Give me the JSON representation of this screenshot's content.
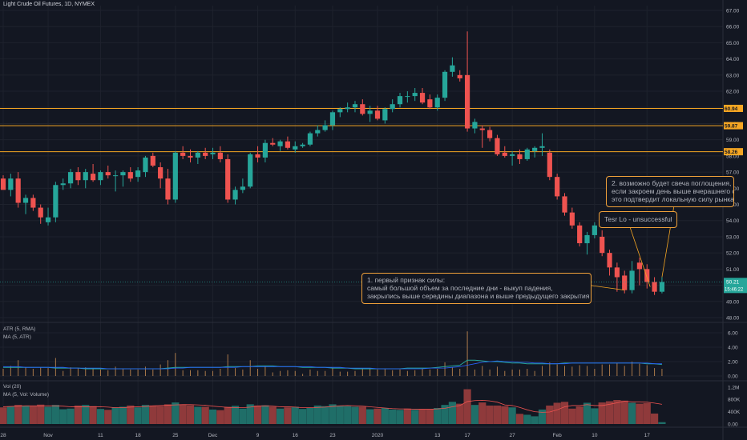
{
  "header": {
    "title": "Light Crude Oil Futures, 1D, NYMEX"
  },
  "theme": {
    "bg": "#131722",
    "grid": "#1e222d",
    "up": "#26a69a",
    "down": "#ef5350",
    "level": "#f5a623"
  },
  "chart_data": [
    {
      "type": "candlestick",
      "title": "Light Crude Oil Futures, 1D, NYMEX",
      "ylim": [
        48.0,
        67.0
      ],
      "y_ticks": [
        "67.00",
        "66.00",
        "65.00",
        "64.00",
        "63.00",
        "62.00",
        "61.00",
        "60.00",
        "59.00",
        "58.00",
        "57.00",
        "56.00",
        "55.00",
        "54.00",
        "53.00",
        "52.00",
        "51.00",
        "50.00",
        "49.00",
        "48.00"
      ],
      "x_ticks": [
        "28",
        "Nov",
        "11",
        "18",
        "25",
        "Dec",
        "9",
        "16",
        "23",
        "2020",
        "13",
        "17",
        "27",
        "Feb",
        "10",
        "17"
      ],
      "price_labels": {
        "last": "50.21",
        "countdown": "15:46:22"
      },
      "levels": [
        {
          "value": 60.94,
          "label": "60.94"
        },
        {
          "value": 59.87,
          "label": "59.87"
        },
        {
          "value": 58.26,
          "label": "58.26"
        }
      ],
      "candles": [
        {
          "o": 56.6,
          "h": 56.8,
          "l": 56.0,
          "c": 55.9
        },
        {
          "o": 55.9,
          "h": 56.9,
          "l": 55.5,
          "c": 56.6
        },
        {
          "o": 56.6,
          "h": 57.0,
          "l": 54.8,
          "c": 55.1
        },
        {
          "o": 55.1,
          "h": 55.6,
          "l": 54.4,
          "c": 55.4
        },
        {
          "o": 55.4,
          "h": 55.6,
          "l": 54.6,
          "c": 54.8
        },
        {
          "o": 54.8,
          "h": 55.0,
          "l": 53.8,
          "c": 54.2
        },
        {
          "o": 53.9,
          "h": 54.8,
          "l": 53.7,
          "c": 54.2
        },
        {
          "o": 54.2,
          "h": 56.4,
          "l": 53.9,
          "c": 56.2
        },
        {
          "o": 56.2,
          "h": 56.6,
          "l": 55.9,
          "c": 56.3
        },
        {
          "o": 56.3,
          "h": 57.2,
          "l": 56.0,
          "c": 57.0
        },
        {
          "o": 57.0,
          "h": 57.3,
          "l": 56.2,
          "c": 56.5
        },
        {
          "o": 56.5,
          "h": 57.2,
          "l": 56.0,
          "c": 57.0
        },
        {
          "o": 56.9,
          "h": 57.5,
          "l": 56.4,
          "c": 56.5
        },
        {
          "o": 56.5,
          "h": 57.1,
          "l": 56.2,
          "c": 57.0
        },
        {
          "o": 57.0,
          "h": 57.4,
          "l": 56.6,
          "c": 56.8
        },
        {
          "o": 56.8,
          "h": 57.1,
          "l": 55.8,
          "c": 56.8
        },
        {
          "o": 56.8,
          "h": 57.1,
          "l": 56.1,
          "c": 57.0
        },
        {
          "o": 57.0,
          "h": 57.3,
          "l": 56.4,
          "c": 56.6
        },
        {
          "o": 56.7,
          "h": 57.3,
          "l": 56.4,
          "c": 57.1
        },
        {
          "o": 57.0,
          "h": 58.0,
          "l": 56.7,
          "c": 57.9
        },
        {
          "o": 58.0,
          "h": 58.2,
          "l": 57.3,
          "c": 57.4
        },
        {
          "o": 57.3,
          "h": 57.6,
          "l": 56.0,
          "c": 56.6
        },
        {
          "o": 56.6,
          "h": 57.2,
          "l": 55.0,
          "c": 55.3
        },
        {
          "o": 55.3,
          "h": 58.3,
          "l": 55.1,
          "c": 58.2
        },
        {
          "o": 58.2,
          "h": 58.6,
          "l": 57.8,
          "c": 58.0
        },
        {
          "o": 58.0,
          "h": 58.4,
          "l": 57.6,
          "c": 57.9
        },
        {
          "o": 57.9,
          "h": 58.3,
          "l": 57.5,
          "c": 58.2
        },
        {
          "o": 58.2,
          "h": 58.5,
          "l": 57.8,
          "c": 58.0
        },
        {
          "o": 58.1,
          "h": 58.5,
          "l": 57.8,
          "c": 58.2
        },
        {
          "o": 58.2,
          "h": 58.6,
          "l": 57.6,
          "c": 57.8
        },
        {
          "o": 57.8,
          "h": 58.1,
          "l": 55.1,
          "c": 55.3
        },
        {
          "o": 55.3,
          "h": 56.1,
          "l": 55.0,
          "c": 55.9
        },
        {
          "o": 55.9,
          "h": 56.6,
          "l": 55.7,
          "c": 56.1
        },
        {
          "o": 56.1,
          "h": 58.2,
          "l": 56.0,
          "c": 58.1
        },
        {
          "o": 58.1,
          "h": 58.6,
          "l": 57.6,
          "c": 57.9
        },
        {
          "o": 57.9,
          "h": 59.0,
          "l": 57.6,
          "c": 58.8
        },
        {
          "o": 58.8,
          "h": 59.1,
          "l": 58.6,
          "c": 58.7
        },
        {
          "o": 58.6,
          "h": 59.0,
          "l": 58.3,
          "c": 58.9
        },
        {
          "o": 58.9,
          "h": 59.2,
          "l": 58.4,
          "c": 58.5
        },
        {
          "o": 58.4,
          "h": 58.9,
          "l": 58.2,
          "c": 58.6
        },
        {
          "o": 58.6,
          "h": 58.8,
          "l": 58.5,
          "c": 58.7
        },
        {
          "o": 58.7,
          "h": 59.5,
          "l": 58.6,
          "c": 59.4
        },
        {
          "o": 59.4,
          "h": 59.9,
          "l": 59.2,
          "c": 59.6
        },
        {
          "o": 59.6,
          "h": 60.2,
          "l": 59.5,
          "c": 59.9
        },
        {
          "o": 59.9,
          "h": 60.8,
          "l": 59.6,
          "c": 60.7
        },
        {
          "o": 60.7,
          "h": 61.0,
          "l": 60.4,
          "c": 60.9
        },
        {
          "o": 60.9,
          "h": 61.3,
          "l": 60.7,
          "c": 61.0
        },
        {
          "o": 61.0,
          "h": 61.4,
          "l": 60.7,
          "c": 61.2
        },
        {
          "o": 61.2,
          "h": 61.5,
          "l": 60.5,
          "c": 60.6
        },
        {
          "o": 60.6,
          "h": 61.1,
          "l": 60.1,
          "c": 60.8
        },
        {
          "o": 60.8,
          "h": 61.1,
          "l": 60.2,
          "c": 60.3
        },
        {
          "o": 60.2,
          "h": 61.0,
          "l": 60.0,
          "c": 60.9
        },
        {
          "o": 60.9,
          "h": 61.5,
          "l": 60.7,
          "c": 61.2
        },
        {
          "o": 61.2,
          "h": 61.9,
          "l": 61.0,
          "c": 61.7
        },
        {
          "o": 61.7,
          "h": 62.0,
          "l": 61.3,
          "c": 61.7
        },
        {
          "o": 61.7,
          "h": 62.2,
          "l": 61.4,
          "c": 61.9
        },
        {
          "o": 61.9,
          "h": 62.2,
          "l": 61.2,
          "c": 61.3
        },
        {
          "o": 61.5,
          "h": 61.8,
          "l": 60.9,
          "c": 61.0
        },
        {
          "o": 61.0,
          "h": 61.8,
          "l": 60.8,
          "c": 61.6
        },
        {
          "o": 61.6,
          "h": 63.3,
          "l": 61.4,
          "c": 63.2
        },
        {
          "o": 63.2,
          "h": 64.1,
          "l": 62.9,
          "c": 63.6
        },
        {
          "o": 63.0,
          "h": 63.3,
          "l": 62.6,
          "c": 62.8
        },
        {
          "o": 63.0,
          "h": 65.7,
          "l": 59.5,
          "c": 59.7
        },
        {
          "o": 59.7,
          "h": 60.3,
          "l": 59.4,
          "c": 60.1
        },
        {
          "o": 59.7,
          "h": 59.9,
          "l": 58.5,
          "c": 59.6
        },
        {
          "o": 59.6,
          "h": 59.8,
          "l": 58.9,
          "c": 59.1
        },
        {
          "o": 59.1,
          "h": 59.3,
          "l": 58.0,
          "c": 58.1
        },
        {
          "o": 58.2,
          "h": 58.6,
          "l": 57.9,
          "c": 58.0
        },
        {
          "o": 58.0,
          "h": 58.3,
          "l": 57.4,
          "c": 58.1
        },
        {
          "o": 58.1,
          "h": 58.4,
          "l": 57.5,
          "c": 57.8
        },
        {
          "o": 57.8,
          "h": 58.5,
          "l": 57.7,
          "c": 58.4
        },
        {
          "o": 58.3,
          "h": 58.6,
          "l": 57.9,
          "c": 58.5
        },
        {
          "o": 58.5,
          "h": 59.4,
          "l": 58.0,
          "c": 58.6
        },
        {
          "o": 58.2,
          "h": 58.4,
          "l": 56.5,
          "c": 56.7
        },
        {
          "o": 56.7,
          "h": 56.9,
          "l": 55.3,
          "c": 55.5
        },
        {
          "o": 55.5,
          "h": 55.7,
          "l": 54.3,
          "c": 54.5
        },
        {
          "o": 54.5,
          "h": 54.8,
          "l": 53.5,
          "c": 53.7
        },
        {
          "o": 53.7,
          "h": 53.9,
          "l": 52.4,
          "c": 52.6
        },
        {
          "o": 52.6,
          "h": 53.3,
          "l": 51.9,
          "c": 53.1
        },
        {
          "o": 53.1,
          "h": 53.9,
          "l": 52.9,
          "c": 53.7
        },
        {
          "o": 53.0,
          "h": 53.4,
          "l": 51.8,
          "c": 52.0
        },
        {
          "o": 52.0,
          "h": 52.2,
          "l": 50.6,
          "c": 51.1
        },
        {
          "o": 51.1,
          "h": 51.4,
          "l": 49.6,
          "c": 50.5
        },
        {
          "o": 50.6,
          "h": 50.9,
          "l": 49.5,
          "c": 49.7
        },
        {
          "o": 49.7,
          "h": 51.5,
          "l": 49.5,
          "c": 50.9
        },
        {
          "o": 51.4,
          "h": 51.7,
          "l": 50.0,
          "c": 51.0
        },
        {
          "o": 51.0,
          "h": 51.3,
          "l": 49.8,
          "c": 50.2
        },
        {
          "o": 50.2,
          "h": 50.5,
          "l": 49.4,
          "c": 49.6
        },
        {
          "o": 49.6,
          "h": 50.5,
          "l": 49.5,
          "c": 50.2
        }
      ]
    },
    {
      "type": "line",
      "title": "ATR (5, RMA)",
      "series": [
        {
          "name": "MA (5, ATR)"
        }
      ],
      "ylim": [
        0,
        7
      ],
      "y_ticks": [
        "6.00",
        "4.00",
        "2.00",
        "0.00"
      ],
      "atr": [
        1.2,
        1.2,
        1.2,
        1.2,
        1.2,
        1.2,
        1.2,
        1.1,
        1.1,
        1.1,
        1.1,
        1.0,
        1.0,
        1.0,
        1.0,
        1.0,
        1.0,
        1.0,
        1.0,
        1.0,
        1.0,
        1.0,
        1.1,
        1.2,
        1.2,
        1.2,
        1.2,
        1.2,
        1.2,
        1.2,
        1.3,
        1.3,
        1.3,
        1.3,
        1.4,
        1.4,
        1.4,
        1.3,
        1.3,
        1.3,
        1.2,
        1.2,
        1.2,
        1.2,
        1.1,
        1.1,
        1.1,
        1.0,
        1.0,
        1.0,
        1.0,
        1.0,
        1.0,
        1.0,
        1.1,
        1.1,
        1.1,
        1.1,
        1.2,
        1.3,
        1.4,
        1.5,
        2.2,
        2.2,
        2.1,
        2.0,
        2.0,
        1.9,
        1.8,
        1.8,
        1.7,
        1.7,
        1.7,
        1.7,
        1.7,
        1.8,
        1.8,
        1.8,
        1.8,
        1.8,
        1.8,
        1.8,
        1.8,
        1.8,
        1.8,
        1.8,
        1.7,
        1.7,
        1.6
      ],
      "atr_ma": [
        1.3,
        1.3,
        1.3,
        1.2,
        1.2,
        1.2,
        1.2,
        1.2,
        1.2,
        1.1,
        1.1,
        1.1,
        1.1,
        1.1,
        1.0,
        1.0,
        1.0,
        1.0,
        1.0,
        1.0,
        1.0,
        1.0,
        1.0,
        1.1,
        1.1,
        1.2,
        1.2,
        1.2,
        1.2,
        1.2,
        1.2,
        1.2,
        1.3,
        1.3,
        1.3,
        1.3,
        1.3,
        1.3,
        1.3,
        1.3,
        1.3,
        1.3,
        1.2,
        1.2,
        1.2,
        1.2,
        1.1,
        1.1,
        1.1,
        1.1,
        1.0,
        1.0,
        1.0,
        1.0,
        1.0,
        1.0,
        1.0,
        1.1,
        1.1,
        1.1,
        1.2,
        1.3,
        1.5,
        1.7,
        1.9,
        2.0,
        2.1,
        2.0,
        2.0,
        1.9,
        1.9,
        1.8,
        1.8,
        1.7,
        1.7,
        1.7,
        1.8,
        1.8,
        1.8,
        1.8,
        1.8,
        1.8,
        1.8,
        1.8,
        1.8,
        1.8,
        1.8,
        1.7,
        1.7
      ],
      "true_range": [
        1.0,
        1.4,
        2.2,
        1.2,
        1.0,
        1.2,
        1.1,
        2.5,
        0.7,
        1.2,
        1.1,
        1.2,
        1.1,
        0.9,
        0.8,
        1.3,
        1.0,
        0.9,
        0.9,
        1.3,
        0.9,
        1.6,
        2.2,
        3.2,
        0.8,
        0.8,
        0.8,
        0.7,
        0.7,
        1.0,
        3.0,
        1.1,
        0.9,
        2.2,
        1.0,
        1.4,
        0.5,
        0.7,
        0.8,
        0.7,
        0.3,
        0.9,
        0.7,
        0.7,
        1.2,
        0.6,
        0.6,
        0.7,
        1.0,
        1.0,
        0.9,
        1.0,
        0.8,
        0.9,
        0.7,
        0.8,
        1.0,
        0.9,
        1.0,
        1.9,
        1.2,
        1.0,
        6.2,
        0.9,
        1.4,
        0.9,
        1.3,
        0.7,
        0.9,
        0.9,
        1.0,
        0.7,
        1.4,
        1.9,
        1.6,
        1.4,
        1.3,
        1.5,
        1.4,
        1.0,
        1.6,
        1.6,
        1.8,
        1.4,
        2.0,
        1.7,
        1.5,
        1.1,
        1.0
      ]
    },
    {
      "type": "bar",
      "title": "Vol (20)",
      "series": [
        {
          "name": "MA (5, Vol: Volume)"
        }
      ],
      "ylim": [
        0,
        1300000
      ],
      "y_ticks": [
        "1.2M",
        "800K",
        "400K",
        "0.00"
      ],
      "volume": [
        540000,
        570000,
        620000,
        600000,
        580000,
        630000,
        560000,
        620000,
        480000,
        500000,
        600000,
        620000,
        580000,
        490000,
        460000,
        540000,
        560000,
        600000,
        540000,
        620000,
        600000,
        580000,
        640000,
        700000,
        640000,
        610000,
        560000,
        560000,
        470000,
        450000,
        560000,
        590000,
        500000,
        640000,
        600000,
        610000,
        560000,
        500000,
        540000,
        560000,
        490000,
        520000,
        600000,
        580000,
        640000,
        600000,
        580000,
        560000,
        560000,
        480000,
        500000,
        520000,
        470000,
        460000,
        500000,
        460000,
        470000,
        480000,
        520000,
        620000,
        720000,
        660000,
        1130000,
        620000,
        700000,
        600000,
        600000,
        580000,
        540000,
        330000,
        300000,
        250000,
        470000,
        600000,
        690000,
        720000,
        500000,
        570000,
        690000,
        510000,
        700000,
        740000,
        780000,
        760000,
        690000,
        660000,
        680000,
        340000,
        60000
      ],
      "vol_ma": [
        560000,
        570000,
        580000,
        590000,
        590000,
        590000,
        590000,
        590000,
        580000,
        560000,
        560000,
        560000,
        560000,
        560000,
        550000,
        530000,
        530000,
        550000,
        560000,
        570000,
        590000,
        600000,
        610000,
        620000,
        630000,
        630000,
        620000,
        610000,
        580000,
        560000,
        540000,
        530000,
        530000,
        550000,
        580000,
        590000,
        580000,
        560000,
        560000,
        550000,
        530000,
        530000,
        540000,
        550000,
        570000,
        590000,
        600000,
        590000,
        580000,
        560000,
        540000,
        520000,
        500000,
        490000,
        490000,
        480000,
        480000,
        480000,
        490000,
        510000,
        560000,
        600000,
        730000,
        760000,
        770000,
        750000,
        710000,
        620000,
        600000,
        540000,
        460000,
        400000,
        380000,
        390000,
        460000,
        560000,
        600000,
        600000,
        630000,
        600000,
        600000,
        640000,
        690000,
        740000,
        720000,
        720000,
        710000,
        680000,
        640000
      ],
      "up": [
        false,
        true,
        false,
        true,
        false,
        false,
        true,
        true,
        true,
        true,
        false,
        true,
        false,
        true,
        false,
        true,
        true,
        false,
        true,
        true,
        false,
        false,
        false,
        true,
        false,
        false,
        true,
        false,
        true,
        false,
        false,
        true,
        true,
        true,
        false,
        true,
        false,
        true,
        false,
        true,
        true,
        true,
        true,
        true,
        true,
        true,
        true,
        true,
        false,
        true,
        false,
        true,
        true,
        true,
        false,
        true,
        false,
        false,
        true,
        true,
        true,
        false,
        false,
        true,
        false,
        false,
        false,
        false,
        true,
        false,
        true,
        true,
        true,
        false,
        false,
        false,
        false,
        false,
        true,
        true,
        false,
        false,
        false,
        false,
        true,
        false,
        false,
        false,
        true
      ]
    }
  ],
  "annotations": [
    {
      "text": "1. первый признак силы:\nсамый большой объем за последние дни - выкуп падения,\nзакрылись выше середины диапазона и выше предыдущего закрытия"
    },
    {
      "text": "Tesr Lo - unsuccessful"
    },
    {
      "text": "2. возможно будет свеча поглощения,\nесли закроем день выше вчерашнего от\nэто подтвердит локальную силу рынка"
    }
  ]
}
